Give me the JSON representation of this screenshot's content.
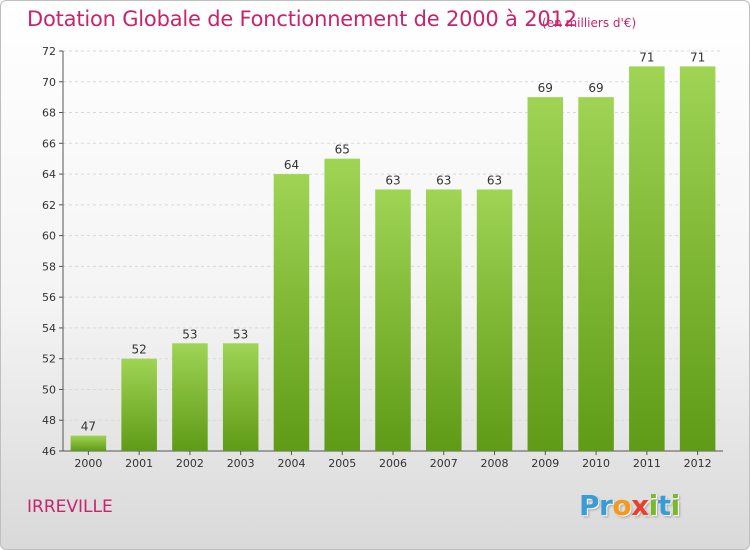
{
  "header": {
    "title": "Dotation Globale de Fonctionnement de 2000 à 2012",
    "unit": "(en milliers d'€)"
  },
  "footer": {
    "commune": "IRREVILLE",
    "brand": "Proxiti",
    "brand_letters": [
      {
        "ch": "P",
        "color": "#3a9bd5"
      },
      {
        "ch": "r",
        "color": "#3a9bd5"
      },
      {
        "ch": "o",
        "color": "#f39a1e"
      },
      {
        "ch": "x",
        "color": "#e8402c"
      },
      {
        "ch": "i",
        "color": "#7ab929"
      },
      {
        "ch": "t",
        "color": "#3a9bd5"
      },
      {
        "ch": "i",
        "color": "#7ab929"
      }
    ]
  },
  "colors": {
    "accent": "#c8246b",
    "bar_light": "#9fd454",
    "bar_dark": "#5f9b16",
    "grid": "#d9d9d9"
  },
  "chart_data": {
    "type": "bar",
    "categories": [
      "2000",
      "2001",
      "2002",
      "2003",
      "2004",
      "2005",
      "2006",
      "2007",
      "2008",
      "2009",
      "2010",
      "2011",
      "2012"
    ],
    "values": [
      47,
      52,
      53,
      53,
      64,
      65,
      63,
      63,
      63,
      69,
      69,
      71,
      71
    ],
    "title": "Dotation Globale de Fonctionnement de 2000 à 2012",
    "ylim": [
      46,
      72
    ],
    "yticks": [
      46,
      48,
      50,
      52,
      54,
      56,
      58,
      60,
      62,
      64,
      66,
      68,
      70,
      72
    ],
    "grid": true
  }
}
